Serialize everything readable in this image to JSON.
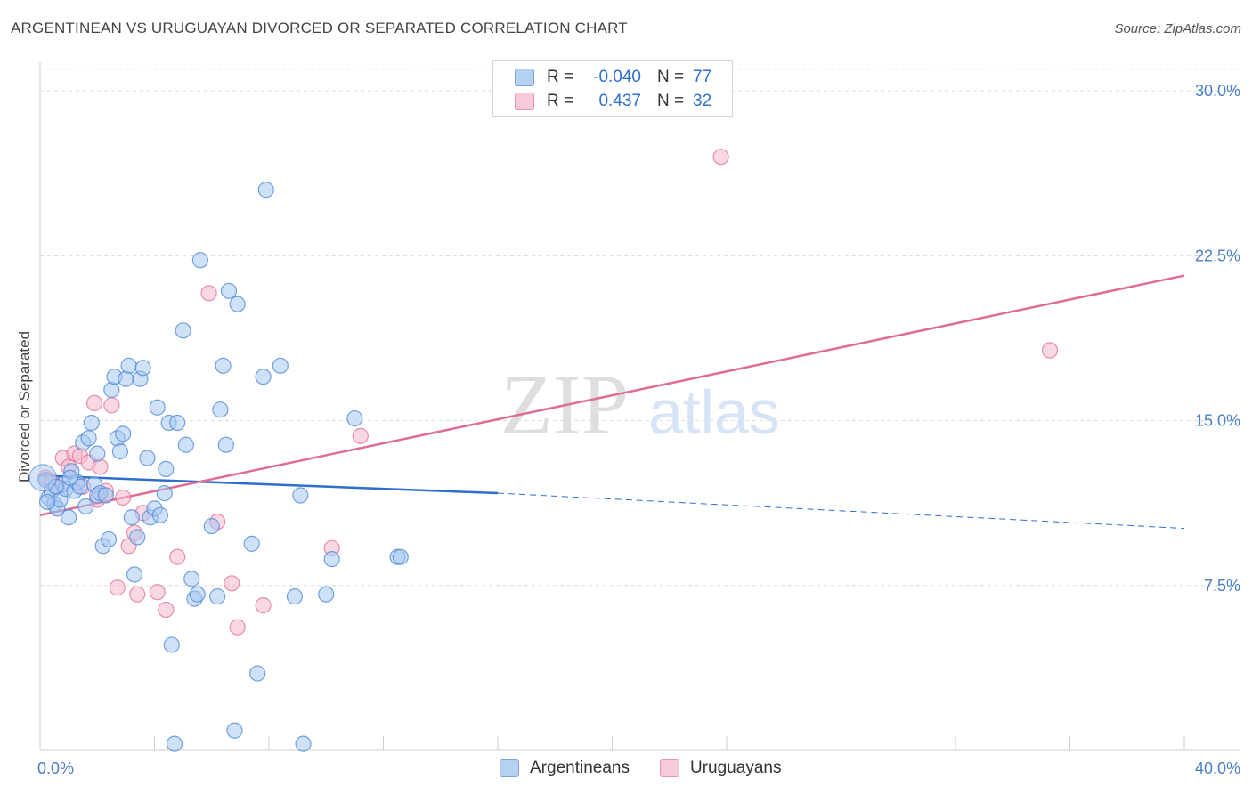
{
  "header": {
    "title": "ARGENTINEAN VS URUGUAYAN DIVORCED OR SEPARATED CORRELATION CHART",
    "source": "Source: ZipAtlas.com"
  },
  "watermark": {
    "zip": "ZIP",
    "atlas": "atlas"
  },
  "legend": {
    "rows": [
      {
        "r_label": "R =",
        "r_value": "-0.040",
        "n_label": "N =",
        "n_value": "77",
        "color": "#a8c8f0"
      },
      {
        "r_label": "R =",
        "r_value": "0.437",
        "n_label": "N =",
        "n_value": "32",
        "color": "#f5b8cb"
      }
    ]
  },
  "bottom_legend": {
    "argentineans": "Argentineans",
    "uruguayans": "Uruguayans"
  },
  "chart_data": {
    "type": "scatter",
    "title": "ARGENTINEAN VS URUGUAYAN DIVORCED OR SEPARATED CORRELATION CHART",
    "xlabel": "",
    "ylabel": "Divorced or Separated",
    "xlim": [
      0,
      40
    ],
    "ylim": [
      0,
      31.3
    ],
    "x_tick_labels": [
      "0.0%",
      "40.0%"
    ],
    "y_ticks": [
      7.5,
      15.0,
      22.5,
      30.0
    ],
    "y_tick_labels": [
      "7.5%",
      "15.0%",
      "22.5%",
      "30.0%"
    ],
    "grid": true,
    "series": [
      {
        "name": "Argentineans",
        "color": "#4a86d8",
        "fill": "#a8c8f0",
        "points": [
          [
            0.2,
            12.3
          ],
          [
            0.3,
            11.5
          ],
          [
            0.4,
            11.8
          ],
          [
            0.5,
            11.2
          ],
          [
            0.6,
            11.0
          ],
          [
            0.7,
            11.4
          ],
          [
            0.8,
            12.1
          ],
          [
            0.9,
            11.9
          ],
          [
            1.0,
            10.6
          ],
          [
            1.1,
            12.7
          ],
          [
            1.2,
            11.8
          ],
          [
            1.3,
            12.2
          ],
          [
            1.4,
            12.0
          ],
          [
            1.5,
            14.0
          ],
          [
            1.6,
            11.1
          ],
          [
            1.7,
            14.2
          ],
          [
            1.8,
            14.9
          ],
          [
            1.9,
            12.1
          ],
          [
            2.0,
            13.5
          ],
          [
            2.0,
            11.6
          ],
          [
            2.1,
            11.7
          ],
          [
            2.2,
            9.3
          ],
          [
            2.3,
            11.6
          ],
          [
            2.4,
            9.6
          ],
          [
            2.5,
            16.4
          ],
          [
            2.6,
            17.0
          ],
          [
            2.7,
            14.2
          ],
          [
            2.8,
            13.6
          ],
          [
            2.9,
            14.4
          ],
          [
            3.0,
            16.9
          ],
          [
            3.1,
            17.5
          ],
          [
            3.2,
            10.6
          ],
          [
            3.3,
            8.0
          ],
          [
            3.4,
            9.7
          ],
          [
            3.5,
            16.9
          ],
          [
            3.6,
            17.4
          ],
          [
            3.75,
            13.3
          ],
          [
            3.85,
            10.6
          ],
          [
            4.0,
            11.0
          ],
          [
            4.1,
            15.6
          ],
          [
            4.2,
            10.7
          ],
          [
            4.35,
            11.7
          ],
          [
            4.4,
            12.8
          ],
          [
            4.5,
            14.9
          ],
          [
            4.6,
            4.8
          ],
          [
            4.8,
            14.9
          ],
          [
            5.0,
            19.1
          ],
          [
            5.1,
            13.9
          ],
          [
            5.3,
            7.8
          ],
          [
            5.4,
            6.9
          ],
          [
            5.5,
            7.1
          ],
          [
            5.6,
            22.3
          ],
          [
            6.0,
            10.2
          ],
          [
            6.2,
            7.0
          ],
          [
            6.3,
            15.5
          ],
          [
            6.4,
            17.5
          ],
          [
            6.5,
            13.9
          ],
          [
            6.6,
            20.9
          ],
          [
            6.8,
            0.9
          ],
          [
            6.9,
            20.3
          ],
          [
            7.4,
            9.4
          ],
          [
            7.6,
            3.5
          ],
          [
            7.8,
            17.0
          ],
          [
            7.9,
            25.5
          ],
          [
            8.4,
            17.5
          ],
          [
            8.9,
            7.0
          ],
          [
            9.1,
            11.6
          ],
          [
            9.2,
            0.3
          ],
          [
            10.0,
            7.1
          ],
          [
            10.2,
            8.7
          ],
          [
            11.0,
            15.1
          ],
          [
            12.5,
            8.8
          ],
          [
            12.6,
            8.8
          ],
          [
            0.25,
            11.3
          ],
          [
            0.55,
            12.0
          ],
          [
            1.05,
            12.4
          ],
          [
            4.7,
            0.3
          ]
        ],
        "trend": {
          "x": [
            0,
            16,
            40
          ],
          "y": [
            12.5,
            11.7,
            10.1
          ]
        }
      },
      {
        "name": "Uruguayans",
        "color": "#e06c94",
        "fill": "#f5b8cb",
        "points": [
          [
            0.2,
            12.4
          ],
          [
            0.4,
            12.2
          ],
          [
            0.6,
            12.0
          ],
          [
            0.8,
            13.3
          ],
          [
            1.0,
            12.9
          ],
          [
            1.2,
            13.5
          ],
          [
            1.4,
            13.4
          ],
          [
            1.5,
            12.0
          ],
          [
            1.7,
            13.1
          ],
          [
            1.9,
            15.8
          ],
          [
            2.0,
            11.4
          ],
          [
            2.1,
            12.9
          ],
          [
            2.3,
            11.8
          ],
          [
            2.5,
            15.7
          ],
          [
            2.7,
            7.4
          ],
          [
            2.9,
            11.5
          ],
          [
            3.1,
            9.3
          ],
          [
            3.3,
            9.9
          ],
          [
            3.4,
            7.1
          ],
          [
            3.6,
            10.8
          ],
          [
            4.1,
            7.2
          ],
          [
            4.4,
            6.4
          ],
          [
            4.8,
            8.8
          ],
          [
            5.9,
            20.8
          ],
          [
            6.2,
            10.4
          ],
          [
            6.7,
            7.6
          ],
          [
            6.9,
            5.6
          ],
          [
            7.8,
            6.6
          ],
          [
            10.2,
            9.2
          ],
          [
            11.2,
            14.3
          ],
          [
            23.8,
            27.0
          ],
          [
            35.3,
            18.2
          ]
        ],
        "trend": {
          "x": [
            0,
            40
          ],
          "y": [
            10.7,
            21.6
          ]
        }
      }
    ]
  }
}
